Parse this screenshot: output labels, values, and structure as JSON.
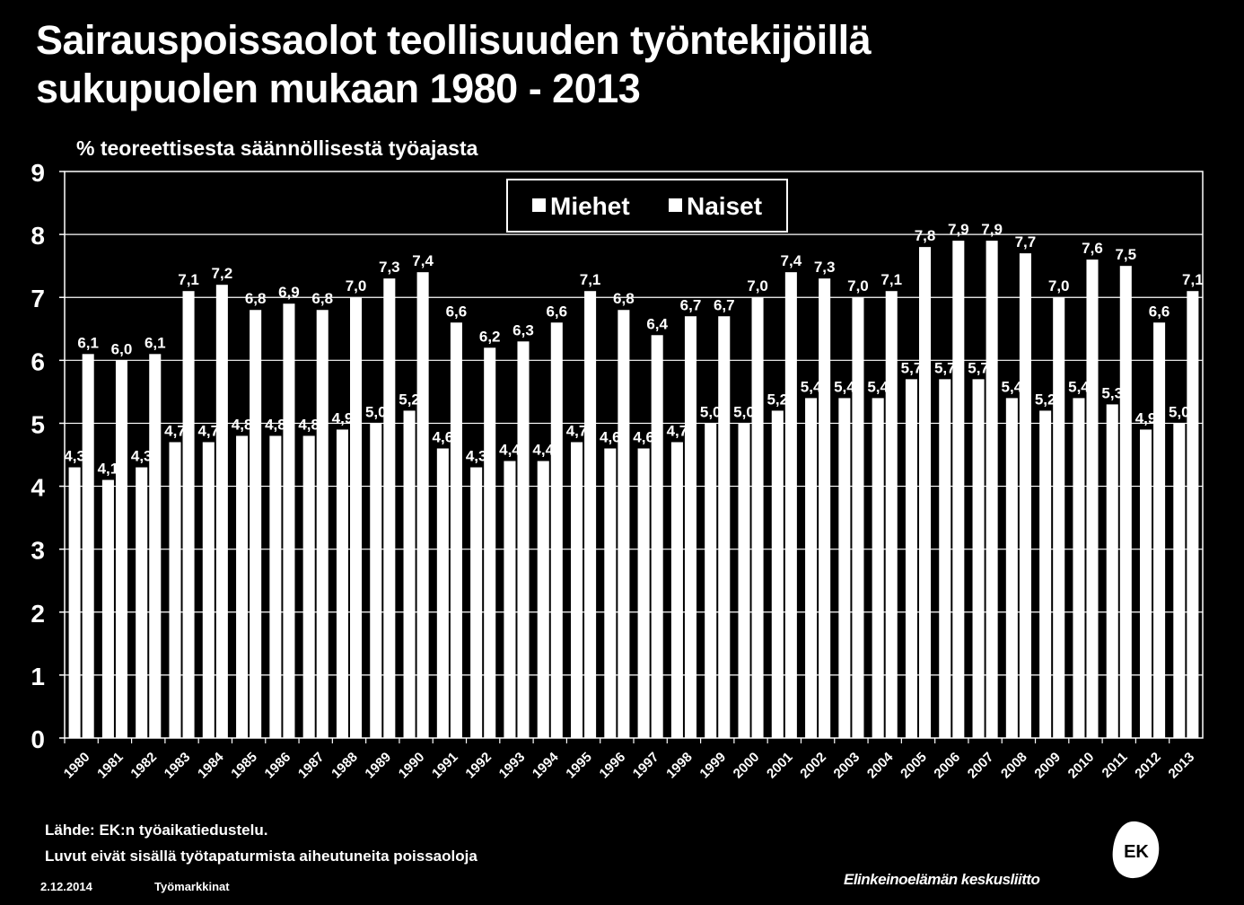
{
  "header": {
    "title_line1": "Sairauspoissaolot teollisuuden työntekijöillä",
    "title_line2": "sukupuolen mukaan 1980 - 2013",
    "unit_label": "% teoreettisesta säännöllisestä työajasta"
  },
  "chart_data": {
    "type": "bar",
    "title": "Sairauspoissaolot teollisuuden työntekijöillä sukupuolen mukaan 1980 - 2013",
    "ylabel": "% teoreettisesta säännöllisestä työajasta",
    "xlabel": "",
    "ylim": [
      0,
      9
    ],
    "yticks": [
      0,
      1,
      2,
      3,
      4,
      5,
      6,
      7,
      8,
      9
    ],
    "grid": true,
    "legend_position": "top-center",
    "categories": [
      "1980",
      "1981",
      "1982",
      "1983",
      "1984",
      "1985",
      "1986",
      "1987",
      "1988",
      "1989",
      "1990",
      "1991",
      "1992",
      "1993",
      "1994",
      "1995",
      "1996",
      "1997",
      "1998",
      "1999",
      "2000",
      "2001",
      "2002",
      "2003",
      "2004",
      "2005",
      "2006",
      "2007",
      "2008",
      "2009",
      "2010",
      "2011",
      "2012",
      "2013"
    ],
    "series": [
      {
        "name": "Miehet",
        "color": "#ffffff",
        "values": [
          4.3,
          4.1,
          4.3,
          4.7,
          4.7,
          4.8,
          4.8,
          4.8,
          4.9,
          5.0,
          5.2,
          4.6,
          4.3,
          4.4,
          4.4,
          4.7,
          4.6,
          4.6,
          4.7,
          5.0,
          5.0,
          5.2,
          5.4,
          5.4,
          5.4,
          5.7,
          5.7,
          5.7,
          5.4,
          5.2,
          5.4,
          5.3,
          4.9,
          5.0
        ],
        "labels": [
          "4,3",
          "4,1",
          "4,3",
          "4,7",
          "4,7",
          "4,8",
          "4,8",
          "4,8",
          "4,9",
          "5,0",
          "5,2",
          "4,6",
          "4,3",
          "4,4",
          "4,4",
          "4,7",
          "4,6",
          "4,6",
          "4,7",
          "5,0",
          "5,0",
          "5,2",
          "5,4",
          "5,4",
          "5,4",
          "5,7",
          "5,7",
          "5,7",
          "5,4",
          "5,2",
          "5,4",
          "5,3",
          "4,9",
          "5,0"
        ]
      },
      {
        "name": "Naiset",
        "color": "#ffffff",
        "values": [
          6.1,
          6.0,
          6.1,
          7.1,
          7.2,
          6.8,
          6.9,
          6.8,
          7.0,
          7.3,
          7.4,
          6.6,
          6.2,
          6.3,
          6.6,
          7.1,
          6.8,
          6.4,
          6.7,
          6.7,
          7.0,
          7.4,
          7.3,
          7.0,
          7.1,
          7.8,
          7.9,
          7.9,
          7.7,
          7.0,
          7.6,
          7.5,
          6.6,
          7.1
        ],
        "labels": [
          "6,1",
          "6,0",
          "6,1",
          "7,1",
          "7,2",
          "6,8",
          "6,9",
          "6,8",
          "7,0",
          "7,3",
          "7,4",
          "6,6",
          "6,2",
          "6,3",
          "6,6",
          "7,1",
          "6,8",
          "6,4",
          "6,7",
          "6,7",
          "7,0",
          "7,4",
          "7,3",
          "7,0",
          "7,1",
          "7,8",
          "7,9",
          "7,9",
          "7,7",
          "7,0",
          "7,6",
          "7,5",
          "6,6",
          "7,1"
        ]
      }
    ]
  },
  "footer": {
    "source_line1": "Lähde: EK:n työaikatiedustelu.",
    "source_line2": "Luvut eivät sisällä työtapaturmista aiheutuneita poissaoloja",
    "date": "2.12.2014",
    "section": "Työmarkkinat",
    "organization": "Elinkeinoelämän keskusliitto",
    "logo_text": "EK"
  }
}
